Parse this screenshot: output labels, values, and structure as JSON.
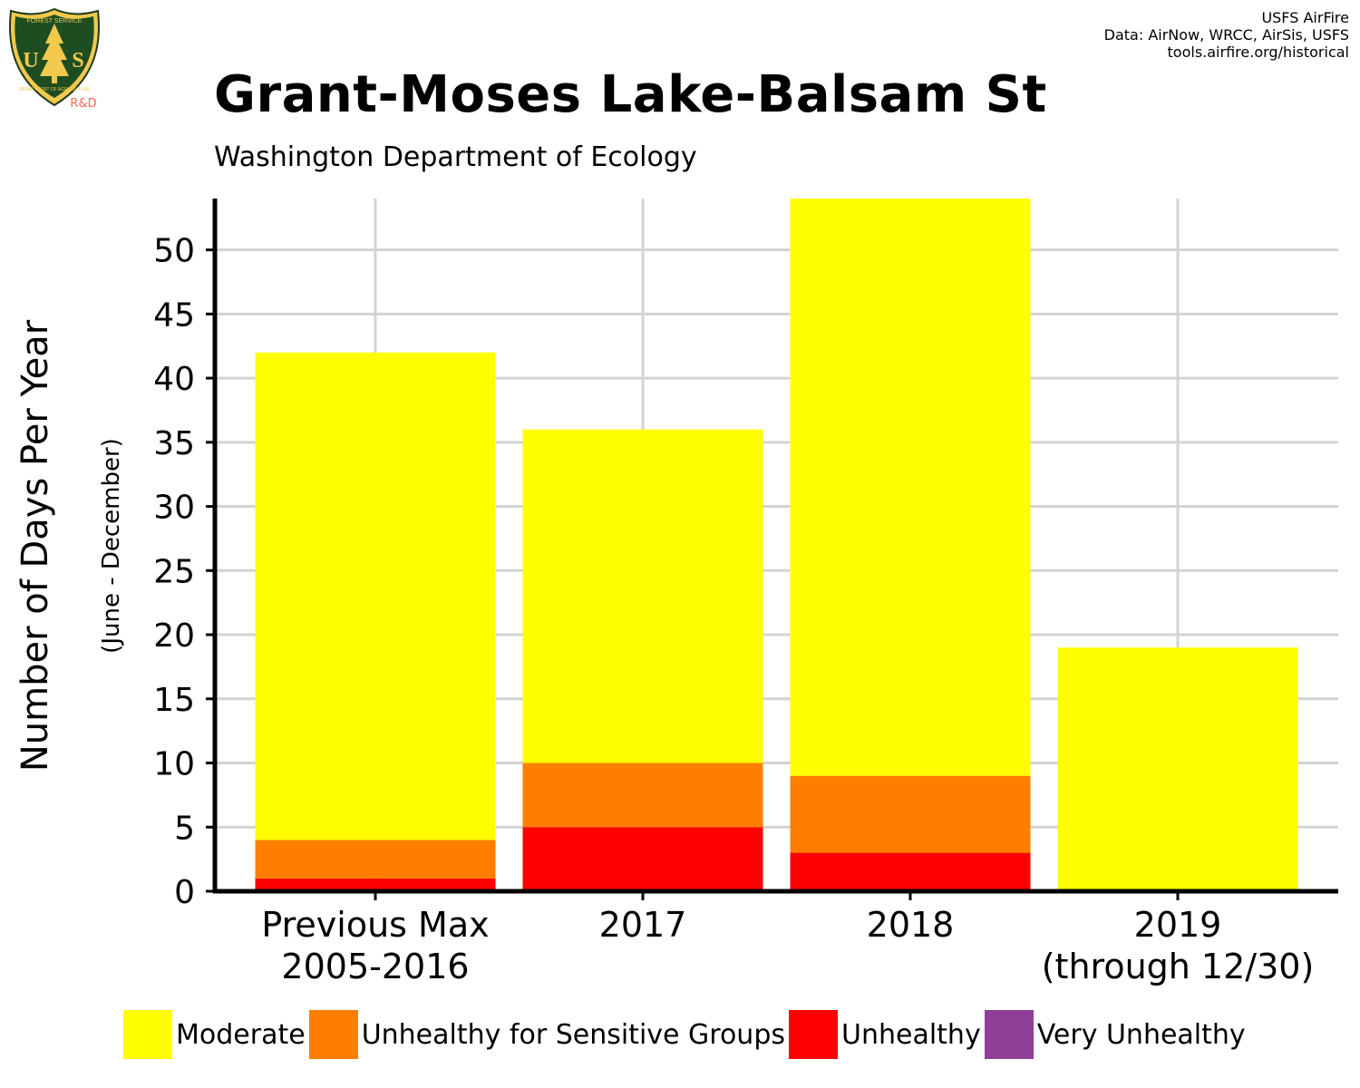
{
  "logo": {
    "top_text": "FOREST SERVICE",
    "letters": "USDA",
    "left_letter": "U",
    "right_letter": "S",
    "bottom_text": "DEPARTMENT OF AGRICULTURE",
    "tag": "R&D"
  },
  "credits": [
    "USFS AirFire",
    "Data: AirNow, WRCC, AirSis, USFS",
    "tools.airfire.org/historical"
  ],
  "colors": {
    "moderate": "#ffff00",
    "usg": "#ff7e00",
    "unhealthy": "#ff0000",
    "very_unhealthy": "#8f3f97",
    "grid": "#d3d3d3",
    "axis": "#000000"
  },
  "chart_data": {
    "type": "bar",
    "stacked": true,
    "title": "Grant-Moses Lake-Balsam St",
    "subtitle": "Washington Department of Ecology",
    "ylabel": "Number of Days Per Year",
    "ylabel_sub": "(June - December)",
    "xlabel": "",
    "ylim": [
      0,
      54
    ],
    "yticks": [
      0,
      5,
      10,
      15,
      20,
      25,
      30,
      35,
      40,
      45,
      50
    ],
    "categories": [
      [
        "Previous Max",
        "2005-2016"
      ],
      [
        "2017"
      ],
      [
        "2018"
      ],
      [
        "2019",
        "(through 12/30)"
      ]
    ],
    "series": [
      {
        "name": "Moderate",
        "color": "#ffff00",
        "values": [
          38,
          26,
          45,
          19
        ]
      },
      {
        "name": "Unhealthy for Sensitive Groups",
        "color": "#ff7e00",
        "values": [
          3,
          5,
          6,
          0
        ]
      },
      {
        "name": "Unhealthy",
        "color": "#ff0000",
        "values": [
          1,
          5,
          3,
          0
        ]
      },
      {
        "name": "Very Unhealthy",
        "color": "#8f3f97",
        "values": [
          0,
          0,
          0,
          0
        ]
      }
    ],
    "grid": true,
    "legend_position": "bottom"
  }
}
